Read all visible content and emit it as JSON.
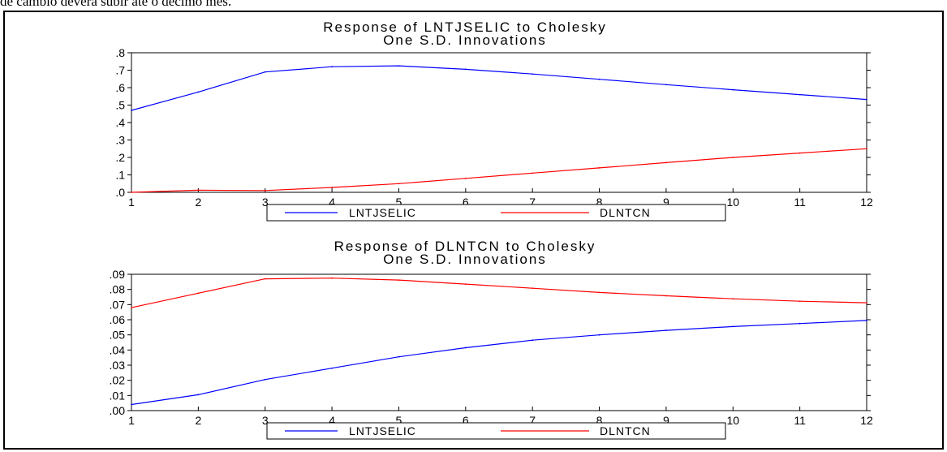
{
  "page": {
    "top_text": "de câmbio deverá subir até o décimo mês."
  },
  "colors": {
    "series_a": "#0000ff",
    "series_b": "#ff0000",
    "axis": "#000000"
  },
  "chart_data": [
    {
      "type": "line",
      "title": "Response of LNTJSELIC to Cholesky",
      "subtitle": "One S.D. Innovations",
      "x": [
        1,
        2,
        3,
        4,
        5,
        6,
        7,
        8,
        9,
        10,
        11,
        12
      ],
      "xlim": [
        1,
        12
      ],
      "ylim": [
        0,
        0.8
      ],
      "yticks": [
        ".0",
        ".1",
        ".2",
        ".3",
        ".4",
        ".5",
        ".6",
        ".7",
        ".8"
      ],
      "grid": false,
      "legend": "bottom",
      "series": [
        {
          "name": "LNTJSELIC",
          "color": "#0000ff",
          "values": [
            0.47,
            0.575,
            0.69,
            0.72,
            0.725,
            0.705,
            0.678,
            0.648,
            0.617,
            0.588,
            0.56,
            0.532
          ]
        },
        {
          "name": "DLNTCN",
          "color": "#ff0000",
          "values": [
            0.0,
            0.012,
            0.01,
            0.028,
            0.05,
            0.08,
            0.11,
            0.14,
            0.17,
            0.2,
            0.225,
            0.25
          ]
        }
      ]
    },
    {
      "type": "line",
      "title": "Response of DLNTCN to Cholesky",
      "subtitle": "One S.D. Innovations",
      "x": [
        1,
        2,
        3,
        4,
        5,
        6,
        7,
        8,
        9,
        10,
        11,
        12
      ],
      "xlim": [
        1,
        12
      ],
      "ylim": [
        0,
        0.09
      ],
      "yticks": [
        ".00",
        ".01",
        ".02",
        ".03",
        ".04",
        ".05",
        ".06",
        ".07",
        ".08",
        ".09"
      ],
      "grid": false,
      "legend": "bottom",
      "series": [
        {
          "name": "LNTJSELIC",
          "color": "#0000ff",
          "values": [
            0.004,
            0.0105,
            0.0205,
            0.028,
            0.0355,
            0.0415,
            0.0465,
            0.05,
            0.053,
            0.0555,
            0.0575,
            0.0595
          ]
        },
        {
          "name": "DLNTCN",
          "color": "#ff0000",
          "values": [
            0.068,
            0.0775,
            0.087,
            0.0875,
            0.0862,
            0.0835,
            0.0808,
            0.078,
            0.0758,
            0.0738,
            0.0722,
            0.0712
          ]
        }
      ]
    }
  ]
}
